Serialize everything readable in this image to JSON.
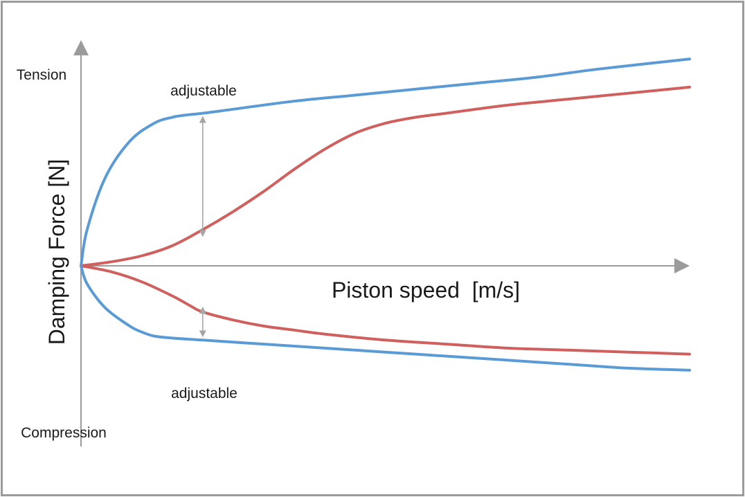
{
  "chart_data": {
    "type": "line",
    "xlabel": "Piston speed  [m/s]",
    "ylabel": "Damping Force [N]",
    "y_top_label": "Tension",
    "y_bottom_label": "Compression",
    "annotations": [
      {
        "text": "adjustable",
        "region": "tension"
      },
      {
        "text": "adjustable",
        "region": "compression"
      }
    ],
    "grid": false,
    "legend": "none",
    "colors": {
      "curve_hard": "#5b9bd5",
      "curve_soft": "#d0605e",
      "axis": "#9b9b9b",
      "arrow": "#a6a6a6",
      "frame": "#9b9b9b"
    },
    "xlim": [
      0,
      100
    ],
    "ylim": [
      -100,
      100
    ],
    "series": [
      {
        "color": "curve_hard",
        "x": [
          0,
          1,
          4,
          8,
          12,
          15,
          17,
          20,
          25,
          35,
          45,
          55,
          65,
          75,
          85,
          100
        ],
        "y": [
          0,
          18,
          44,
          62,
          71,
          74,
          75,
          76,
          78,
          82,
          85,
          88,
          91,
          94,
          98,
          103
        ]
      },
      {
        "color": "curve_soft",
        "x": [
          0,
          5,
          10,
          15,
          20,
          25,
          30,
          35,
          40,
          45,
          50,
          55,
          60,
          70,
          80,
          90,
          100
        ],
        "y": [
          0,
          2,
          5,
          10,
          18,
          27,
          37,
          48,
          58,
          66,
          71,
          74,
          76,
          80,
          83,
          86,
          89
        ]
      },
      {
        "color": "curve_soft",
        "x": [
          0,
          5,
          10,
          15,
          18,
          20,
          25,
          30,
          35,
          40,
          50,
          60,
          70,
          80,
          90,
          100
        ],
        "y": [
          0,
          -3,
          -8,
          -15,
          -20,
          -23,
          -27,
          -30,
          -32,
          -34,
          -37,
          -39,
          -41,
          -42,
          -43,
          -44
        ]
      },
      {
        "color": "curve_hard",
        "x": [
          0,
          1,
          4,
          8,
          10,
          12,
          15,
          20,
          30,
          40,
          50,
          60,
          70,
          80,
          90,
          100
        ],
        "y": [
          0,
          -9,
          -21,
          -30,
          -33,
          -35,
          -36,
          -37,
          -39,
          -41,
          -43,
          -45,
          -47,
          -49,
          -51,
          -52
        ]
      }
    ],
    "adjust_arrows": [
      {
        "x": 20,
        "y_from": 75,
        "y_to": 14
      },
      {
        "x": 20,
        "y_from": -20,
        "y_to": -36
      }
    ]
  }
}
